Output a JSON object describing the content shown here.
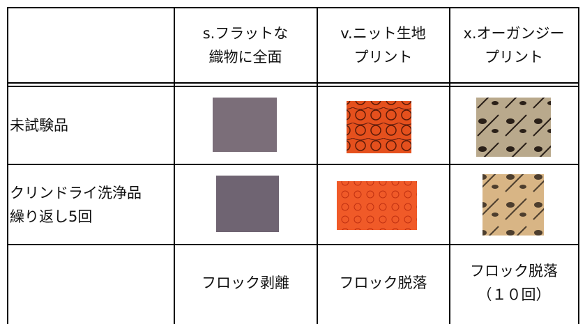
{
  "header": {
    "columns": [
      [
        "s.フラットな",
        "織物に全面"
      ],
      [
        "v.ニット生地",
        "プリント"
      ],
      [
        "x.オーガンジー",
        "プリント"
      ]
    ]
  },
  "rows": [
    {
      "label": [
        "未試験品"
      ]
    },
    {
      "label": [
        "クリンドライ洗浄品",
        "繰り返し5回"
      ]
    }
  ],
  "results": [
    [
      "フロック剥離"
    ],
    [
      "フロック脱落"
    ],
    [
      "フロック脱落",
      "（１０回）"
    ]
  ]
}
